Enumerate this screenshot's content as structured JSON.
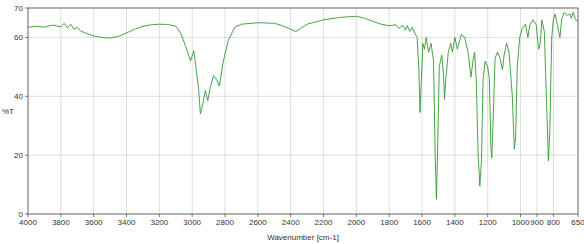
{
  "chart_data": {
    "type": "line",
    "x_label": "Wavenumber [cm-1]",
    "y_label": "%T",
    "color": "#339933",
    "grid": true,
    "xlim": [
      4000,
      650
    ],
    "ylim": [
      0,
      70
    ],
    "xticks": [
      4000,
      3800,
      3600,
      3400,
      3200,
      3000,
      2800,
      2600,
      2400,
      2200,
      2000,
      1800,
      1600,
      1400,
      1200,
      1000,
      900,
      800,
      650
    ],
    "yticks": [
      0,
      20,
      40,
      60,
      70
    ],
    "x": [
      4000,
      3950,
      3900,
      3850,
      3800,
      3780,
      3760,
      3740,
      3720,
      3700,
      3680,
      3650,
      3600,
      3550,
      3500,
      3450,
      3400,
      3350,
      3300,
      3250,
      3200,
      3150,
      3100,
      3070,
      3040,
      3010,
      2990,
      2960,
      2950,
      2935,
      2920,
      2905,
      2890,
      2870,
      2850,
      2835,
      2810,
      2780,
      2740,
      2700,
      2600,
      2500,
      2450,
      2400,
      2370,
      2340,
      2300,
      2200,
      2100,
      2000,
      1950,
      1900,
      1850,
      1800,
      1760,
      1740,
      1720,
      1700,
      1690,
      1675,
      1660,
      1645,
      1630,
      1620,
      1612,
      1605,
      1595,
      1585,
      1575,
      1560,
      1545,
      1530,
      1520,
      1512,
      1505,
      1495,
      1480,
      1470,
      1463,
      1455,
      1440,
      1425,
      1415,
      1400,
      1385,
      1375,
      1360,
      1340,
      1320,
      1302,
      1290,
      1280,
      1270,
      1258,
      1248,
      1238,
      1228,
      1215,
      1200,
      1190,
      1180,
      1175,
      1168,
      1155,
      1140,
      1125,
      1110,
      1100,
      1085,
      1070,
      1050,
      1038,
      1030,
      1020,
      1005,
      990,
      970,
      955,
      945,
      925,
      905,
      890,
      880,
      870,
      855,
      840,
      830,
      822,
      810,
      800,
      790,
      775,
      760,
      750,
      735,
      715,
      700,
      690,
      680,
      665,
      650
    ],
    "values": [
      63.5,
      63.8,
      63.5,
      64.2,
      63.6,
      64.8,
      63.2,
      64.5,
      62.8,
      63.4,
      62.2,
      61.5,
      60.5,
      60.0,
      59.8,
      60.3,
      61.5,
      62.8,
      63.8,
      64.3,
      64.5,
      64.4,
      63.8,
      61.5,
      57.0,
      52.0,
      55.5,
      42.0,
      34.0,
      37.5,
      42.0,
      38.5,
      43.0,
      47.0,
      45.5,
      43.5,
      52.0,
      59.0,
      63.5,
      64.5,
      65.0,
      64.8,
      64.0,
      62.8,
      62.0,
      63.0,
      64.5,
      66.0,
      66.8,
      67.2,
      66.5,
      65.5,
      64.5,
      64.0,
      64.3,
      63.0,
      64.2,
      62.5,
      64.0,
      62.0,
      63.5,
      61.5,
      60.0,
      50.0,
      34.5,
      44.0,
      58.0,
      56.0,
      60.0,
      55.0,
      58.0,
      52.0,
      20.0,
      5.0,
      22.0,
      50.0,
      54.0,
      48.0,
      39.0,
      46.0,
      55.0,
      58.0,
      55.0,
      60.0,
      56.0,
      58.0,
      61.0,
      60.0,
      55.0,
      46.5,
      52.0,
      55.0,
      46.0,
      20.0,
      9.5,
      18.0,
      46.0,
      52.0,
      50.0,
      46.0,
      22.0,
      19.0,
      30.0,
      53.0,
      55.0,
      53.0,
      49.0,
      54.0,
      58.0,
      55.0,
      40.0,
      22.0,
      26.0,
      50.0,
      60.0,
      63.0,
      64.5,
      60.0,
      64.0,
      66.0,
      64.5,
      56.0,
      58.0,
      66.0,
      62.0,
      35.0,
      18.0,
      28.0,
      60.0,
      66.0,
      68.0,
      64.0,
      60.0,
      66.0,
      68.5,
      67.5,
      68.0,
      66.5,
      68.5,
      66.0,
      65.5
    ]
  }
}
